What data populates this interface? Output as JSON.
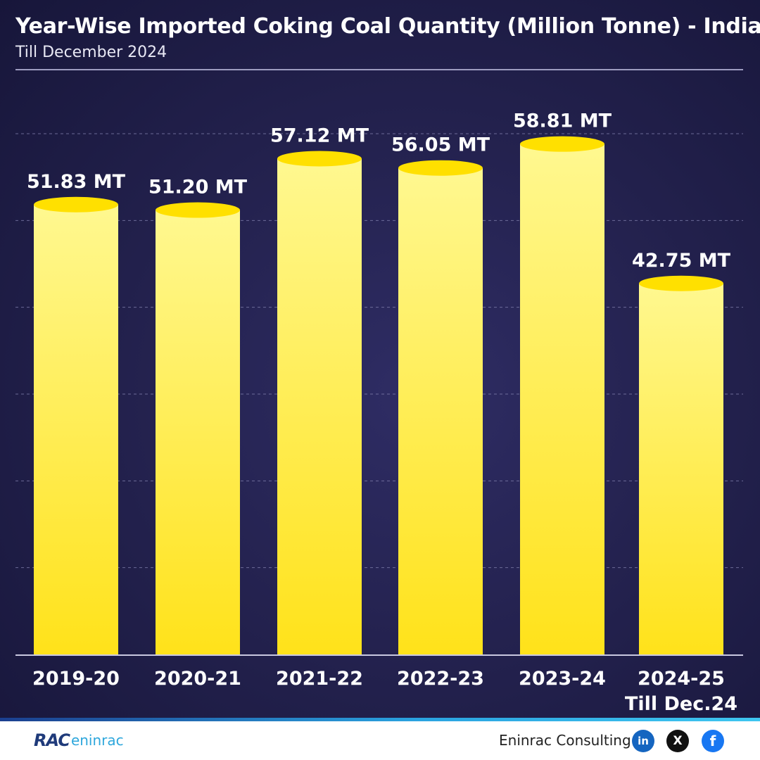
{
  "header": {
    "title": "Year-Wise Imported Coking Coal Quantity (Million Tonne) - India",
    "subtitle": "Till December 2024"
  },
  "chart_data": {
    "type": "bar",
    "title": "Year-Wise Imported Coking Coal Quantity (Million Tonne) - India",
    "subtitle": "Till December 2024",
    "categories": [
      "2019-20",
      "2020-21",
      "2021-22",
      "2022-23",
      "2023-24",
      "2024-25"
    ],
    "category_sublabels": [
      "",
      "",
      "",
      "",
      "",
      "Till Dec.24"
    ],
    "values": [
      51.83,
      51.2,
      57.12,
      56.05,
      58.81,
      42.75
    ],
    "data_labels": [
      "51.83 MT",
      "51.20 MT",
      "57.12 MT",
      "56.05 MT",
      "58.81 MT",
      "42.75  MT"
    ],
    "unit": "MT",
    "ylim": [
      0,
      60
    ],
    "grid": true,
    "grid_style": "dashed",
    "colors": {
      "bar_top": "#fff890",
      "bar_bottom": "#ffe21a",
      "cap": "#ffe000",
      "background": "#24224f"
    }
  },
  "footer": {
    "logo_mark": "RAC",
    "logo_word": "eninrac",
    "brand": "Eninrac Consulting",
    "social": [
      {
        "icon": "linkedin-icon",
        "glyph": "in"
      },
      {
        "icon": "x-icon",
        "glyph": "X"
      },
      {
        "icon": "facebook-icon",
        "glyph": "f"
      }
    ]
  }
}
